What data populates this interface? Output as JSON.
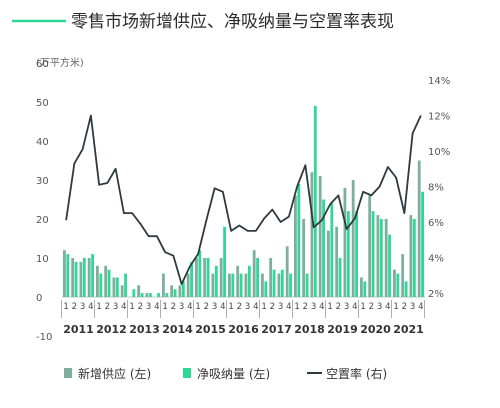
{
  "chart_data": {
    "type": "bar",
    "title": "零售市场新增供应、净吸纳量与空置率表现",
    "unit_label": "(万平方米)",
    "left_axis": {
      "ticks": [
        -10,
        0,
        10,
        20,
        30,
        40,
        50,
        60
      ],
      "ylim": [
        -10,
        60
      ]
    },
    "right_axis": {
      "ticks": [
        "2%",
        "4%",
        "6%",
        "8%",
        "10%",
        "12%",
        "14%"
      ],
      "ylim": [
        2,
        14
      ]
    },
    "years": [
      "2011",
      "2012",
      "2013",
      "2014",
      "2015",
      "2016",
      "2017",
      "2018",
      "2019",
      "2020",
      "2021"
    ],
    "quarter_labels": [
      "1",
      "2",
      "3",
      "4"
    ],
    "categories": [
      "2011Q1",
      "2011Q2",
      "2011Q3",
      "2011Q4",
      "2012Q1",
      "2012Q2",
      "2012Q3",
      "2012Q4",
      "2013Q1",
      "2013Q2",
      "2013Q3",
      "2013Q4",
      "2014Q1",
      "2014Q2",
      "2014Q3",
      "2014Q4",
      "2015Q1",
      "2015Q2",
      "2015Q3",
      "2015Q4",
      "2016Q1",
      "2016Q2",
      "2016Q3",
      "2016Q4",
      "2017Q1",
      "2017Q2",
      "2017Q3",
      "2017Q4",
      "2018Q1",
      "2018Q2",
      "2018Q3",
      "2018Q4",
      "2019Q1",
      "2019Q2",
      "2019Q3",
      "2019Q4",
      "2020Q1",
      "2020Q2",
      "2020Q3",
      "2020Q4",
      "2021Q1",
      "2021Q2",
      "2021Q3",
      "2021Q4"
    ],
    "series": [
      {
        "name": "新增供应 (左)",
        "color": "#7fae9d",
        "values": [
          12,
          10,
          9,
          10,
          8,
          8,
          5,
          3,
          0,
          3,
          1,
          0,
          6,
          3,
          3,
          6,
          10,
          10,
          6,
          10,
          6,
          8,
          6,
          12,
          6,
          10,
          6,
          13,
          26,
          20,
          32,
          31,
          17,
          18,
          28,
          30,
          5,
          26,
          21,
          20,
          7,
          11,
          21,
          35
        ]
      },
      {
        "name": "净吸纳量 (左)",
        "color": "#2fd897",
        "values": [
          11,
          9,
          10,
          11,
          6,
          7,
          5,
          6,
          2,
          1,
          1,
          1,
          1,
          2,
          4,
          9,
          12,
          10,
          8,
          18,
          6,
          6,
          8,
          10,
          4,
          7,
          7,
          6,
          29,
          6,
          49,
          25,
          24,
          10,
          22,
          22,
          4,
          22,
          20,
          16,
          6,
          4,
          20,
          27
        ]
      },
      {
        "name": "空置率 (右)",
        "color": "#2e3a40",
        "values": [
          6.1,
          9.3,
          10.1,
          12.0,
          8.1,
          8.2,
          9.0,
          6.5,
          6.5,
          5.9,
          5.2,
          5.2,
          4.3,
          4.1,
          2.5,
          3.5,
          4.2,
          6.1,
          7.9,
          7.7,
          5.5,
          5.8,
          5.5,
          5.5,
          6.2,
          6.7,
          6.0,
          6.3,
          8.0,
          9.2,
          5.7,
          6.1,
          7.0,
          7.5,
          5.6,
          6.2,
          7.7,
          7.5,
          8.0,
          9.1,
          8.5,
          6.5,
          11.0,
          12.0
        ]
      }
    ],
    "legend_position": "bottom",
    "grid": false
  }
}
